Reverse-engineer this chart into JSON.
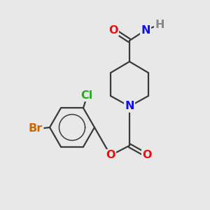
{
  "bg_color": "#e8e8e8",
  "bond_color": "#3a3a3a",
  "bond_width": 1.6,
  "atom_colors": {
    "O": "#e81010",
    "N": "#1010ee",
    "Cl": "#22aa22",
    "Br": "#cc6600",
    "H": "#888888",
    "C": "#3a3a3a"
  },
  "font_size": 11.5
}
